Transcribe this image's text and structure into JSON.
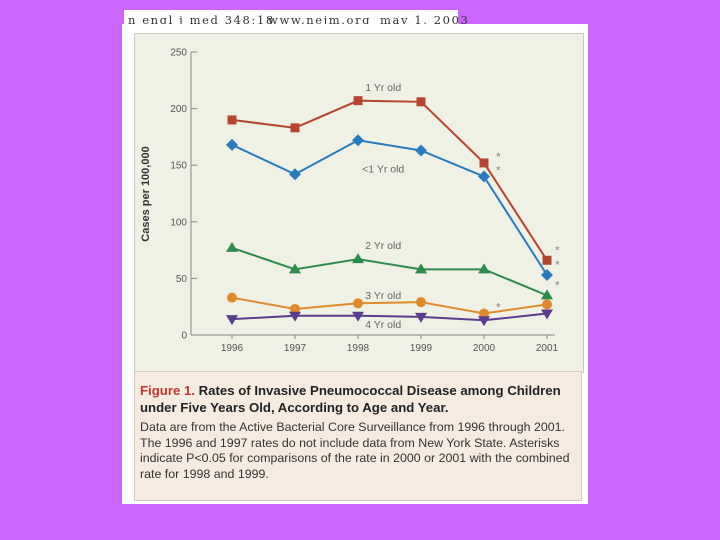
{
  "header": {
    "journal": "n engl j med 348;18",
    "website": "www.nejm.org",
    "date": "may 1, 2003"
  },
  "chart_data": {
    "type": "line",
    "x": [
      1996,
      1997,
      1998,
      1999,
      2000,
      2001
    ],
    "xticks": [
      "1996",
      "1997",
      "1998",
      "1999",
      "2000",
      "2001"
    ],
    "yticks": [
      "0",
      "50",
      "100",
      "150",
      "200",
      "250"
    ],
    "ylim": [
      0,
      250
    ],
    "ylabel": "Cases per 100,000",
    "series": [
      {
        "name": "1 Yr old",
        "color": "#b5452f",
        "marker": "square",
        "values": [
          190,
          183,
          207,
          206,
          152,
          66
        ],
        "asterisk_years": [
          2000,
          2001
        ]
      },
      {
        "name": "<1 Yr old",
        "color": "#2a7bbd",
        "marker": "diamond",
        "values": [
          168,
          142,
          172,
          163,
          140,
          53
        ],
        "asterisk_years": [
          2000,
          2001
        ]
      },
      {
        "name": "2 Yr old",
        "color": "#2e8b4d",
        "marker": "triangle-up",
        "values": [
          77,
          58,
          67,
          58,
          58,
          35
        ],
        "asterisk_years": [
          2001
        ]
      },
      {
        "name": "3 Yr old",
        "color": "#e08a2c",
        "marker": "circle",
        "values": [
          33,
          23,
          28,
          29,
          19,
          27
        ],
        "asterisk_years": [
          2000
        ]
      },
      {
        "name": "4 Yr old",
        "color": "#5b3d8f",
        "marker": "triangle-down",
        "values": [
          14,
          17,
          17,
          16,
          13,
          19
        ],
        "asterisk_years": []
      }
    ]
  },
  "caption": {
    "figure_label": "Figure 1.",
    "title": "Rates of Invasive Pneumococcal Disease among Children under Five Years Old, According to Age and Year.",
    "body": "Data are from the Active Bacterial Core Surveillance from 1996 through 2001. The 1996 and 1997 rates do not include data from New York State. Asterisks indicate P<0.05 for comparisons of the rate in 2000 or 2001 with the combined rate for 1998 and 1999."
  }
}
